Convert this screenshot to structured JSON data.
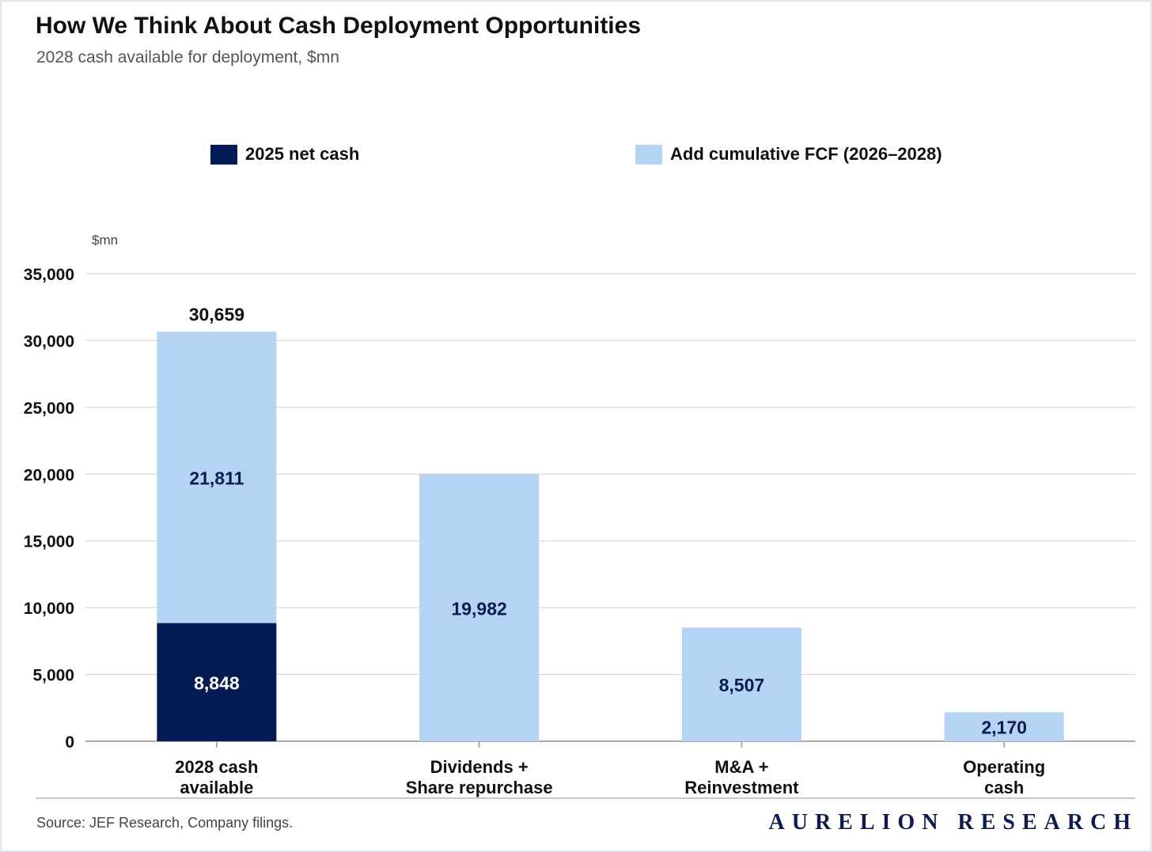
{
  "title": "How We Think About Cash Deployment Opportunities",
  "subtitle": "2028 cash available for deployment, $mn",
  "source": "Source: JEF Research, Company filings.",
  "brand": "AURELION RESEARCH",
  "colors": {
    "net_cash": "#031b52",
    "fcf": "#b5d3f2",
    "grid": "#d8d8d8",
    "axis": "#aaaaaa"
  },
  "chart_data": {
    "type": "bar",
    "stacked": true,
    "title": "How We Think About Cash Deployment Opportunities",
    "subtitle": "2028 cash available for deployment, $mn",
    "ylabel": "$mn",
    "ylim": [
      0,
      35000
    ],
    "yticks": [
      0,
      5000,
      10000,
      15000,
      20000,
      25000,
      30000,
      35000
    ],
    "ytick_labels": [
      "0",
      "5,000",
      "10,000",
      "15,000",
      "20,000",
      "25,000",
      "30,000",
      "35,000"
    ],
    "grid": true,
    "legend_placement": "top",
    "categories": [
      [
        "2028 cash",
        "available"
      ],
      [
        "Dividends +",
        "Share repurchase"
      ],
      [
        "M&A +",
        "Reinvestment"
      ],
      [
        "Operating",
        "cash"
      ]
    ],
    "series": [
      {
        "name": "2025 net cash",
        "color": "#031b52",
        "values": [
          8848,
          0,
          0,
          0
        ],
        "labels": [
          "8,848",
          "",
          "",
          ""
        ]
      },
      {
        "name": "Add cumulative FCF (2026–2028)",
        "color": "#b5d3f2",
        "values": [
          21811,
          19982,
          8507,
          2170
        ],
        "labels": [
          "21,811",
          "19,982",
          "8,507",
          "2,170"
        ]
      }
    ],
    "totals": [
      {
        "index": 0,
        "value": 30659,
        "label": "30,659"
      }
    ]
  }
}
